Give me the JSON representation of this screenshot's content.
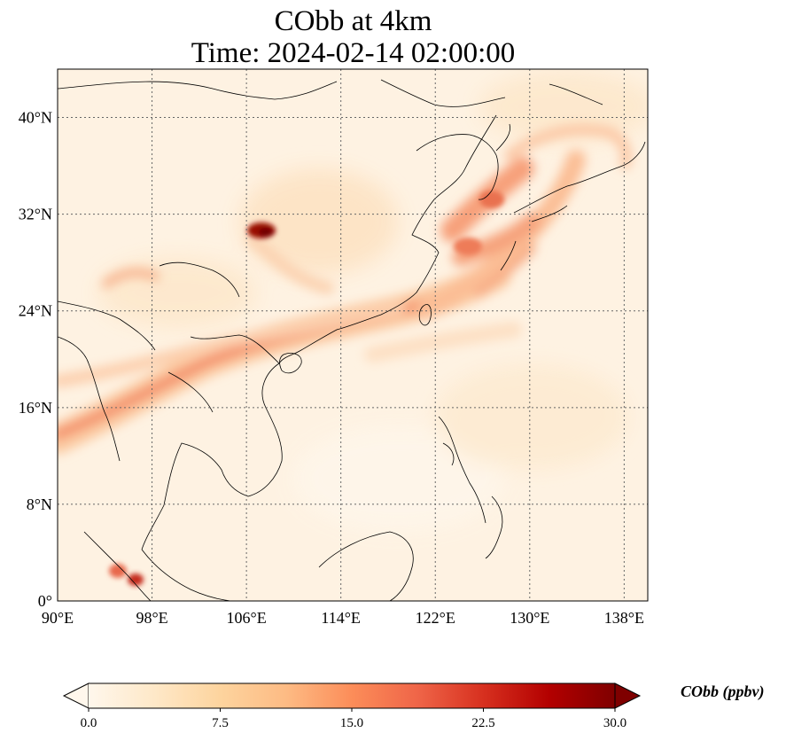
{
  "title": {
    "line1": "CObb at 4km",
    "line2": "Time: 2024-02-14 02:00:00"
  },
  "map": {
    "lon_range": [
      90,
      140
    ],
    "lat_range": [
      0,
      44
    ],
    "lon_ticks": [
      "90°E",
      "98°E",
      "106°E",
      "114°E",
      "122°E",
      "130°E",
      "138°E"
    ],
    "lat_ticks": [
      "0°",
      "8°N",
      "16°N",
      "24°N",
      "32°N",
      "40°N"
    ],
    "gridlines": "dotted",
    "variable": "CObb",
    "level": "4km"
  },
  "colorbar": {
    "label": "CObb (ppbv)",
    "ticks": [
      "0.0",
      "7.5",
      "15.0",
      "22.5",
      "30.0"
    ],
    "range": [
      0,
      30
    ],
    "extend": "both",
    "colormap": "OrRd",
    "colors": [
      "#fff7ec",
      "#fee8c8",
      "#fdd49e",
      "#fdbb84",
      "#fc8d59",
      "#ef6548",
      "#d7301f",
      "#b30000",
      "#7f0000"
    ]
  }
}
